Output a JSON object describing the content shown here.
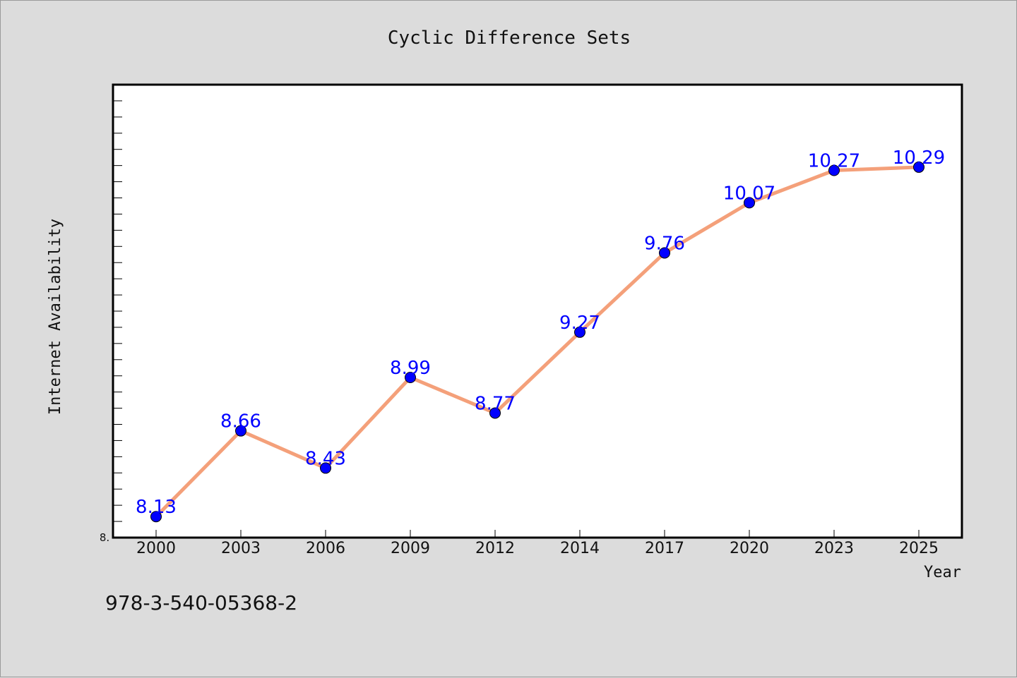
{
  "chart_data": {
    "type": "line",
    "title": "Cyclic Difference Sets",
    "xlabel": "Year",
    "ylabel": "Internet Availability",
    "categories": [
      "2000",
      "2003",
      "2006",
      "2009",
      "2012",
      "2014",
      "2017",
      "2020",
      "2023",
      "2025"
    ],
    "series": [
      {
        "values": [
          8.13,
          8.66,
          8.43,
          8.99,
          8.77,
          9.27,
          9.76,
          10.07,
          10.27,
          10.29
        ],
        "data_labels": [
          "8.13",
          "8.66",
          "8.43",
          "8.99",
          "8.77",
          "9.27",
          "9.76",
          "10.07",
          "10.27",
          "10.29"
        ],
        "line_color": "#f4a07a",
        "marker_color": "#0000ff"
      }
    ],
    "ylim": [
      8.0,
      10.8
    ],
    "y_tick_labels": [
      "8."
    ],
    "grid": false,
    "legend": "none"
  },
  "footer": {
    "code": "978-3-540-05368-2"
  },
  "colors": {
    "background": "#dcdcdc",
    "plot_background": "#ffffff",
    "line": "#f4a07a",
    "marker": "#0000ff",
    "data_label": "#0000ff"
  }
}
